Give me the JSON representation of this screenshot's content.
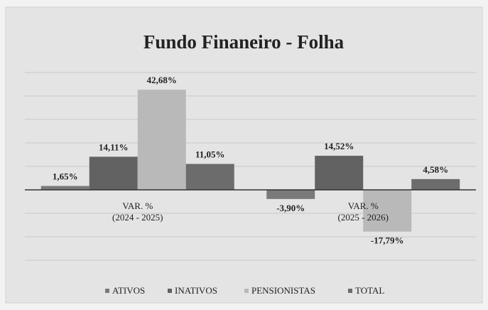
{
  "chart_data": {
    "type": "bar",
    "title": "Fundo Finaneiro - Folha",
    "categories": [
      [
        "VAR. %",
        "(2024 - 2025)"
      ],
      [
        "VAR. %",
        "(2025 - 2026)"
      ]
    ],
    "series": [
      {
        "name": "ATIVOS",
        "color": "#7a7a7a",
        "values": [
          1.65,
          -3.9
        ],
        "value_labels": [
          "1,65%",
          "-3,90%"
        ]
      },
      {
        "name": "INATIVOS",
        "color": "#626262",
        "values": [
          14.11,
          14.52
        ],
        "value_labels": [
          "14,11%",
          "14,52%"
        ]
      },
      {
        "name": "PENSIONISTAS",
        "color": "#b9b9b9",
        "values": [
          42.68,
          -17.79
        ],
        "value_labels": [
          "42,68%",
          "-17,79%"
        ]
      },
      {
        "name": "TOTAL",
        "color": "#6c6c6c",
        "values": [
          11.05,
          4.58
        ],
        "value_labels": [
          "11,05%",
          "4,58%"
        ]
      }
    ],
    "ylim": [
      -30,
      50
    ],
    "yticks": [
      -30,
      -20,
      -10,
      0,
      10,
      20,
      30,
      40,
      50
    ],
    "grid": true
  }
}
